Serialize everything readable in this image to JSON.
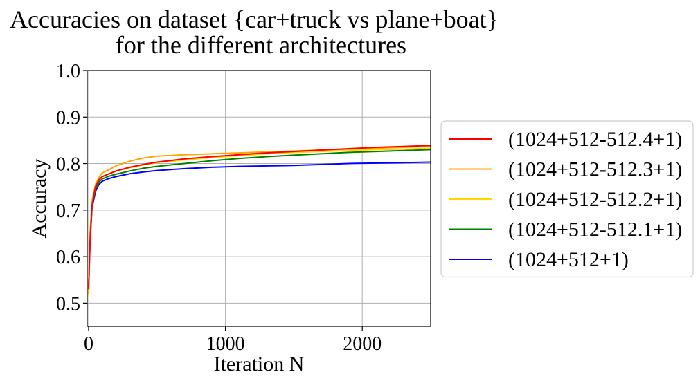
{
  "chart_data": {
    "type": "line",
    "title": "Accuracies on dataset {car+truck vs plane+boat}",
    "subtitle": "for the different architectures",
    "xlabel": "Iteration N",
    "ylabel": "Accuracy",
    "xlim": [
      -10,
      2500
    ],
    "ylim": [
      0.45,
      1.0
    ],
    "xticks": [
      0,
      1000,
      2000
    ],
    "xtick_labels": [
      "0",
      "1000",
      "2000"
    ],
    "yticks": [
      0.5,
      0.6,
      0.7,
      0.8,
      0.9,
      1.0
    ],
    "ytick_labels": [
      "0.5",
      "0.6",
      "0.7",
      "0.8",
      "0.9",
      "1.0"
    ],
    "grid": true,
    "legend_position": "right-outside",
    "series": [
      {
        "name": "(1024+512-512.4+1)",
        "color": "#ff0000",
        "x": [
          0,
          10,
          25,
          50,
          75,
          100,
          150,
          200,
          300,
          400,
          500,
          700,
          900,
          1100,
          1300,
          1500,
          1700,
          1900,
          2100,
          2300,
          2500
        ],
        "y": [
          0.53,
          0.63,
          0.71,
          0.75,
          0.765,
          0.772,
          0.778,
          0.784,
          0.792,
          0.798,
          0.803,
          0.81,
          0.815,
          0.819,
          0.823,
          0.826,
          0.829,
          0.832,
          0.835,
          0.837,
          0.839
        ]
      },
      {
        "name": "(1024+512-512.3+1)",
        "color": "#ffa500",
        "x": [
          0,
          10,
          25,
          50,
          75,
          100,
          150,
          200,
          300,
          400,
          500,
          700,
          900,
          1100,
          1300,
          1500,
          1700,
          1900,
          2100,
          2300,
          2500
        ],
        "y": [
          0.52,
          0.65,
          0.72,
          0.755,
          0.77,
          0.78,
          0.787,
          0.795,
          0.805,
          0.812,
          0.816,
          0.819,
          0.821,
          0.823,
          0.825,
          0.827,
          0.829,
          0.831,
          0.833,
          0.835,
          0.837
        ]
      },
      {
        "name": "(1024+512-512.2+1)",
        "color": "#ffd700",
        "x": [
          0,
          10,
          25,
          50,
          75,
          100,
          150,
          200,
          300,
          400,
          500,
          700,
          900,
          1100,
          1300,
          1500,
          1700,
          1900,
          2100,
          2300,
          2500
        ],
        "y": [
          0.515,
          0.64,
          0.715,
          0.752,
          0.765,
          0.772,
          0.778,
          0.784,
          0.791,
          0.797,
          0.802,
          0.808,
          0.813,
          0.817,
          0.821,
          0.824,
          0.826,
          0.828,
          0.83,
          0.831,
          0.833
        ]
      },
      {
        "name": "(1024+512-512.1+1)",
        "color": "#008000",
        "x": [
          0,
          10,
          25,
          50,
          75,
          100,
          150,
          200,
          300,
          400,
          500,
          700,
          900,
          1100,
          1300,
          1500,
          1700,
          1900,
          2100,
          2300,
          2500
        ],
        "y": [
          0.53,
          0.635,
          0.71,
          0.745,
          0.76,
          0.767,
          0.773,
          0.777,
          0.784,
          0.79,
          0.794,
          0.8,
          0.806,
          0.811,
          0.815,
          0.818,
          0.821,
          0.824,
          0.826,
          0.828,
          0.83
        ]
      },
      {
        "name": "(1024+512+1)",
        "color": "#0000ff",
        "x": [
          0,
          10,
          25,
          50,
          75,
          100,
          150,
          200,
          300,
          400,
          500,
          700,
          900,
          1100,
          1300,
          1500,
          1700,
          1900,
          2100,
          2300,
          2500
        ],
        "y": [
          0.53,
          0.63,
          0.705,
          0.74,
          0.755,
          0.762,
          0.768,
          0.772,
          0.778,
          0.782,
          0.785,
          0.789,
          0.792,
          0.794,
          0.795,
          0.796,
          0.798,
          0.8,
          0.801,
          0.802,
          0.803
        ]
      }
    ]
  }
}
